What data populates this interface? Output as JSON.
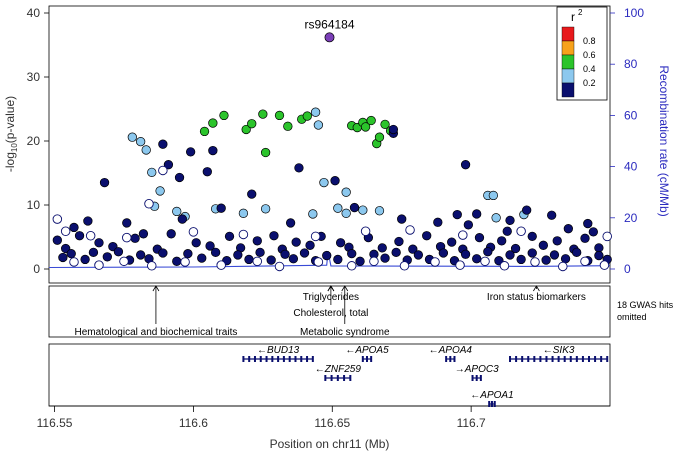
{
  "chart_data": {
    "type": "scatter",
    "title": "",
    "xlabel": "Position on chr11 (Mb)",
    "ylabel_left_prefix": "-log",
    "ylabel_left_sub": "10",
    "ylabel_left_suffix": "(p-value)",
    "ylabel_right": "Recombination rate (cM/Mb)",
    "xlim": [
      116.548,
      116.75
    ],
    "ylim_left": [
      0,
      42
    ],
    "ylim_right": [
      0,
      100
    ],
    "x_ticks": [
      "116.55",
      "116.6",
      "116.65",
      "116.7"
    ],
    "x_tick_values": [
      116.55,
      116.6,
      116.65,
      116.7
    ],
    "y_left_ticks": [
      "0",
      "10",
      "20",
      "30",
      "40"
    ],
    "y_left_tick_values": [
      0,
      10,
      20,
      30,
      40
    ],
    "y_right_ticks": [
      "0",
      "20",
      "40",
      "60",
      "80",
      "100"
    ],
    "y_right_tick_values": [
      0,
      20,
      40,
      60,
      80,
      100
    ],
    "lead_snp": {
      "label": "rs964184",
      "x": 116.649,
      "y": 36.2
    },
    "legend": {
      "title": "r",
      "title_sup": "2",
      "bins": [
        {
          "label": "0.8",
          "color": "#e8191c"
        },
        {
          "label": "0.6",
          "color": "#f7a21b"
        },
        {
          "label": "0.4",
          "color": "#2bc42b"
        },
        {
          "label": "0.2",
          "color": "#8cc8ee"
        },
        {
          "label": "",
          "color": "#0a0f6e"
        }
      ]
    },
    "series": [
      {
        "name": "r2 0.4-0.6",
        "color": "#2bc42b",
        "points": [
          [
            116.604,
            21.5
          ],
          [
            116.607,
            22.8
          ],
          [
            116.611,
            24
          ],
          [
            116.619,
            21.8
          ],
          [
            116.621,
            22.7
          ],
          [
            116.625,
            24.2
          ],
          [
            116.626,
            18.2
          ],
          [
            116.631,
            24
          ],
          [
            116.634,
            22.3
          ],
          [
            116.639,
            23.4
          ],
          [
            116.641,
            23.9
          ],
          [
            116.657,
            22.4
          ],
          [
            116.659,
            22.1
          ],
          [
            116.661,
            22.9
          ],
          [
            116.662,
            22.2
          ],
          [
            116.664,
            23.2
          ],
          [
            116.666,
            19.6
          ],
          [
            116.667,
            20.6
          ],
          [
            116.669,
            22.6
          ],
          [
            116.671,
            21.6
          ]
        ]
      },
      {
        "name": "r2 0.2-0.4",
        "color": "#8cc8ee",
        "points": [
          [
            116.578,
            20.6
          ],
          [
            116.581,
            19.9
          ],
          [
            116.583,
            18.6
          ],
          [
            116.585,
            15.1
          ],
          [
            116.588,
            12.2
          ],
          [
            116.644,
            24.5
          ],
          [
            116.645,
            22.5
          ],
          [
            116.647,
            13.5
          ],
          [
            116.655,
            12
          ],
          [
            116.586,
            9.8
          ],
          [
            116.594,
            9
          ],
          [
            116.608,
            9.4
          ],
          [
            116.618,
            8.7
          ],
          [
            116.626,
            9.4
          ],
          [
            116.643,
            8.6
          ],
          [
            116.652,
            9.5
          ],
          [
            116.655,
            8.7
          ],
          [
            116.661,
            9.2
          ],
          [
            116.667,
            9.1
          ],
          [
            116.706,
            11.5
          ],
          [
            116.708,
            11.5
          ],
          [
            116.709,
            8
          ],
          [
            116.719,
            8.5
          ],
          [
            116.597,
            8.2
          ]
        ]
      },
      {
        "name": "r2 0-0.2",
        "color": "#0a0f6e",
        "points": [
          [
            116.568,
            13.5
          ],
          [
            116.576,
            7.2
          ],
          [
            116.582,
            5.5
          ],
          [
            116.589,
            19.5
          ],
          [
            116.591,
            16.3
          ],
          [
            116.595,
            14.3
          ],
          [
            116.599,
            18.3
          ],
          [
            116.607,
            18.5
          ],
          [
            116.605,
            15.2
          ],
          [
            116.61,
            9.5
          ],
          [
            116.621,
            11.7
          ],
          [
            116.638,
            15.8
          ],
          [
            116.651,
            13.8
          ],
          [
            116.658,
            9.6
          ],
          [
            116.672,
            21.2
          ],
          [
            116.672,
            21.8
          ],
          [
            116.698,
            16.3
          ],
          [
            116.702,
            8.6
          ],
          [
            116.714,
            7.6
          ],
          [
            116.72,
            9.2
          ],
          [
            116.729,
            8.4
          ],
          [
            116.742,
            7.1
          ],
          [
            116.562,
            7.5
          ],
          [
            116.557,
            6.5
          ],
          [
            116.596,
            7.8
          ],
          [
            116.635,
            7.2
          ],
          [
            116.675,
            7.8
          ],
          [
            116.688,
            7.3
          ],
          [
            116.695,
            8.5
          ],
          [
            116.699,
            6.9
          ],
          [
            116.713,
            5.9
          ],
          [
            116.735,
            6.3
          ],
          [
            116.744,
            5.8
          ],
          [
            116.551,
            4.5
          ],
          [
            116.554,
            3.2
          ],
          [
            116.559,
            5.2
          ],
          [
            116.566,
            4.1
          ],
          [
            116.571,
            3.5
          ],
          [
            116.579,
            4.8
          ],
          [
            116.587,
            3.1
          ],
          [
            116.592,
            5.5
          ],
          [
            116.601,
            4.1
          ],
          [
            116.606,
            3.6
          ],
          [
            116.613,
            5.1
          ],
          [
            116.617,
            3.3
          ],
          [
            116.623,
            4.4
          ],
          [
            116.629,
            5.2
          ],
          [
            116.632,
            3.1
          ],
          [
            116.637,
            4.2
          ],
          [
            116.642,
            3.7
          ],
          [
            116.646,
            5.1
          ],
          [
            116.653,
            4.1
          ],
          [
            116.656,
            3.4
          ],
          [
            116.663,
            4.9
          ],
          [
            116.668,
            3.3
          ],
          [
            116.674,
            4.3
          ],
          [
            116.679,
            3.1
          ],
          [
            116.684,
            5.2
          ],
          [
            116.689,
            3.5
          ],
          [
            116.693,
            4.2
          ],
          [
            116.697,
            3.1
          ],
          [
            116.703,
            4.9
          ],
          [
            116.707,
            3.4
          ],
          [
            116.711,
            4.4
          ],
          [
            116.716,
            3.2
          ],
          [
            116.722,
            5.1
          ],
          [
            116.726,
            3.7
          ],
          [
            116.731,
            4.4
          ],
          [
            116.737,
            3.1
          ],
          [
            116.741,
            4.8
          ],
          [
            116.746,
            3.3
          ],
          [
            116.553,
            1.8
          ],
          [
            116.556,
            2.4
          ],
          [
            116.561,
            1.5
          ],
          [
            116.564,
            2.6
          ],
          [
            116.569,
            1.9
          ],
          [
            116.573,
            2.7
          ],
          [
            116.577,
            1.4
          ],
          [
            116.581,
            2.2
          ],
          [
            116.584,
            1.6
          ],
          [
            116.589,
            2.5
          ],
          [
            116.594,
            1.2
          ],
          [
            116.598,
            2.4
          ],
          [
            116.603,
            1.7
          ],
          [
            116.608,
            2.6
          ],
          [
            116.612,
            1.3
          ],
          [
            116.616,
            2.2
          ],
          [
            116.62,
            1.5
          ],
          [
            116.624,
            2.6
          ],
          [
            116.628,
            1.4
          ],
          [
            116.633,
            2.3
          ],
          [
            116.636,
            1.6
          ],
          [
            116.64,
            2.5
          ],
          [
            116.644,
            1.3
          ],
          [
            116.648,
            2.1
          ],
          [
            116.652,
            1.5
          ],
          [
            116.657,
            2.4
          ],
          [
            116.66,
            1.2
          ],
          [
            116.665,
            2.3
          ],
          [
            116.669,
            1.7
          ],
          [
            116.673,
            2.6
          ],
          [
            116.677,
            1.4
          ],
          [
            116.681,
            2.2
          ],
          [
            116.685,
            1.5
          ],
          [
            116.69,
            2.5
          ],
          [
            116.694,
            1.3
          ],
          [
            116.698,
            2.3
          ],
          [
            116.702,
            1.6
          ],
          [
            116.706,
            2.7
          ],
          [
            116.71,
            1.3
          ],
          [
            116.714,
            2.2
          ],
          [
            116.718,
            1.5
          ],
          [
            116.722,
            2.5
          ],
          [
            116.727,
            1.4
          ],
          [
            116.73,
            2.2
          ],
          [
            116.734,
            1.6
          ],
          [
            116.738,
            2.6
          ],
          [
            116.742,
            1.3
          ],
          [
            116.746,
            2.1
          ],
          [
            116.749,
            1.5
          ]
        ]
      },
      {
        "name": "open circles (r2 < 0.2)",
        "color": "none",
        "points": [
          [
            116.551,
            7.8
          ],
          [
            116.554,
            5.9
          ],
          [
            116.563,
            5.2
          ],
          [
            116.576,
            4.9
          ],
          [
            116.584,
            10.2
          ],
          [
            116.589,
            15.4
          ],
          [
            116.6,
            5.8
          ],
          [
            116.618,
            5.4
          ],
          [
            116.644,
            5.1
          ],
          [
            116.662,
            5.9
          ],
          [
            116.678,
            6.1
          ],
          [
            116.697,
            5.3
          ],
          [
            116.718,
            5.9
          ],
          [
            116.749,
            5.1
          ],
          [
            116.557,
            1.1
          ],
          [
            116.566,
            0.6
          ],
          [
            116.575,
            1.2
          ],
          [
            116.585,
            0.5
          ],
          [
            116.597,
            1.1
          ],
          [
            116.61,
            0.6
          ],
          [
            116.623,
            1.2
          ],
          [
            116.631,
            0.4
          ],
          [
            116.645,
            1.1
          ],
          [
            116.657,
            0.5
          ],
          [
            116.665,
            1.2
          ],
          [
            116.676,
            0.5
          ],
          [
            116.687,
            1.1
          ],
          [
            116.696,
            0.6
          ],
          [
            116.705,
            1.2
          ],
          [
            116.712,
            0.5
          ],
          [
            116.723,
            1.1
          ],
          [
            116.733,
            0.4
          ],
          [
            116.741,
            1.2
          ],
          [
            116.748,
            0.6
          ]
        ]
      }
    ],
    "recombination_rate": [
      [
        116.548,
        0.6
      ],
      [
        116.6,
        0.8
      ],
      [
        116.648,
        1.5
      ],
      [
        116.6485,
        7
      ],
      [
        116.649,
        4
      ],
      [
        116.6495,
        1.2
      ],
      [
        116.69,
        1.1
      ],
      [
        116.72,
        1.0
      ],
      [
        116.75,
        1.3
      ]
    ],
    "gwas_traits": [
      {
        "text": "Hematological and biochemical traits",
        "x": 116.5865,
        "row": 4
      },
      {
        "text": "Triglycerides",
        "x": 116.6495,
        "row": 1
      },
      {
        "text": "Cholesterol, total",
        "x": 116.6495,
        "row": 2
      },
      {
        "text": "Metabolic syndrome",
        "x": 116.6545,
        "row": 4
      },
      {
        "text": "Iron status biomarkers",
        "x": 116.7235,
        "row": 1
      }
    ],
    "gwas_note_line1": "18 GWAS hits",
    "gwas_note_line2": "omitted",
    "genes": [
      {
        "name": "BUD13",
        "start": 116.618,
        "end": 116.643,
        "strand": "-",
        "row": 0
      },
      {
        "name": "APOA5",
        "start": 116.661,
        "end": 116.664,
        "strand": "-",
        "row": 0
      },
      {
        "name": "APOA4",
        "start": 116.691,
        "end": 116.694,
        "strand": "-",
        "row": 0
      },
      {
        "name": "SIK3",
        "start": 116.714,
        "end": 116.749,
        "strand": "-",
        "row": 0
      },
      {
        "name": "ZNF259",
        "start": 116.6475,
        "end": 116.6565,
        "strand": "-",
        "row": 1
      },
      {
        "name": "APOC3",
        "start": 116.7005,
        "end": 116.7035,
        "strand": "+",
        "row": 1
      },
      {
        "name": "APOA1",
        "start": 116.7065,
        "end": 116.7085,
        "strand": "-",
        "row": 2
      }
    ]
  }
}
